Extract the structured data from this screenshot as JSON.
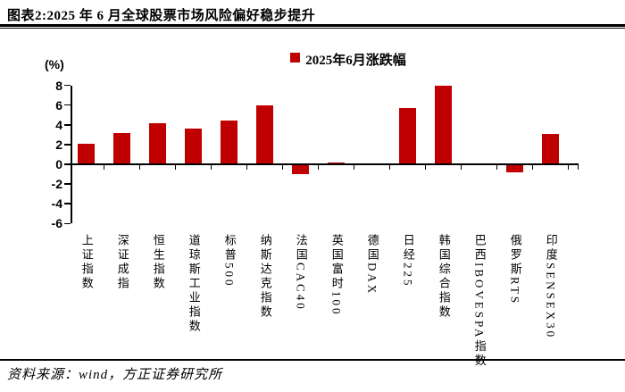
{
  "header": {
    "title": "图表2:2025 年 6 月全球股票市场风险偏好稳步提升"
  },
  "footer": {
    "source": "资料来源：wind，方正证券研究所"
  },
  "colors": {
    "bar": "#C00000",
    "axis": "#000000"
  },
  "chart_data": {
    "type": "bar",
    "legend": "2025年6月涨跌幅",
    "unit_label": "(%)",
    "categories": [
      "上证指数",
      "深证成指",
      "恒生指数",
      "道琼斯工业指数",
      "标普500",
      "纳斯达克指数",
      "法国CAC40",
      "英国富时100",
      "德国DAX",
      "日经225",
      "韩国综合指数",
      "巴西IBOVESPA指数",
      "俄罗斯RTS",
      "印度SENSEX30"
    ],
    "values": [
      2.1,
      3.2,
      4.2,
      3.6,
      4.4,
      6.0,
      -1.0,
      0.2,
      0.1,
      5.7,
      8.0,
      0.1,
      -0.8,
      3.1
    ],
    "yticks": [
      8,
      6,
      4,
      2,
      0,
      -2,
      -4,
      -6
    ],
    "ylim": [
      -6,
      8
    ],
    "bar_color": "#C00000",
    "legend_position": "top-center",
    "grid": false
  }
}
